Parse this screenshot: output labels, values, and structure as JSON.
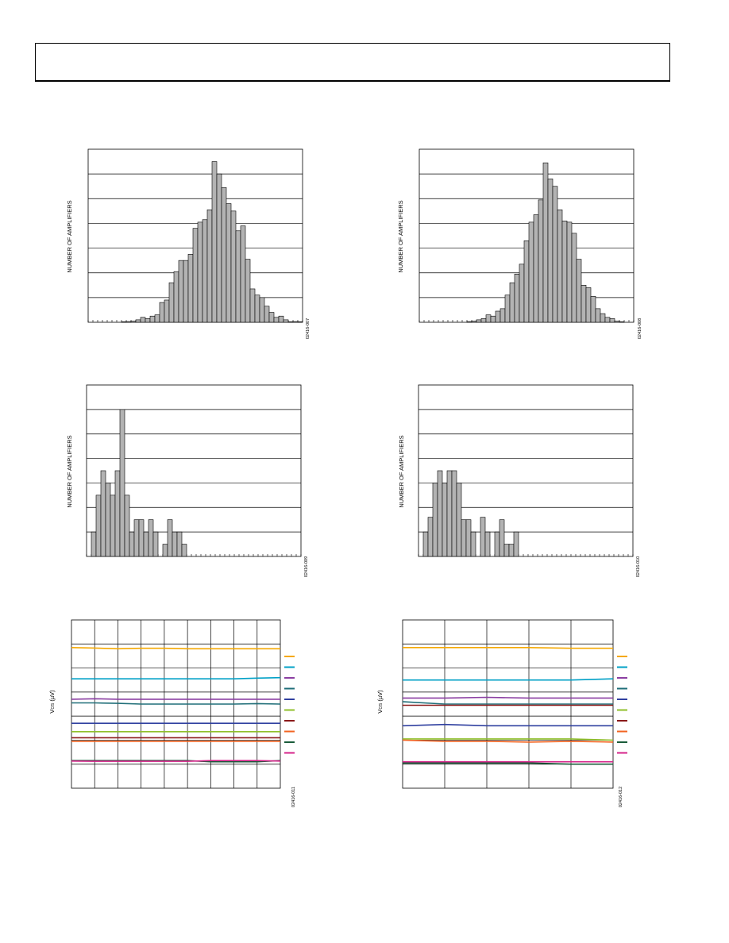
{
  "colors": {
    "bar_fill": "#b3b3b3",
    "grid": "#000000",
    "series": [
      "#f5a800",
      "#00a0c6",
      "#8b3fa2",
      "#1f6e78",
      "#3040a0",
      "#8fbf2a",
      "#8b1a1a",
      "#f26522",
      "#1a5c3a",
      "#d6238a"
    ]
  },
  "charts": [
    {
      "ylabel": "NUMBER OF AMPLIFIERS",
      "figure_code": "02416-007"
    },
    {
      "ylabel": "NUMBER OF AMPLIFIERS",
      "figure_code": "02416-008"
    },
    {
      "ylabel": "NUMBER OF AMPLIFIERS",
      "figure_code": "02416-009"
    },
    {
      "ylabel": "NUMBER OF AMPLIFIERS",
      "figure_code": "02416-010"
    },
    {
      "ylabel_main": "V",
      "ylabel_sub": "OS",
      "ylabel_unit": " (µV)",
      "figure_code": "02416-011"
    },
    {
      "ylabel_main": "V",
      "ylabel_sub": "OS",
      "ylabel_unit": " (µV)",
      "figure_code": "02416-012"
    }
  ],
  "chart_data": [
    {
      "type": "bar",
      "ylim": [
        0,
        7
      ],
      "grid": true,
      "xticks": 45,
      "values": [
        0,
        0,
        0,
        0,
        0,
        0,
        0,
        0.02,
        0.03,
        0.05,
        0.1,
        0.2,
        0.15,
        0.25,
        0.3,
        0.8,
        0.9,
        1.6,
        2.05,
        2.5,
        2.5,
        2.75,
        3.8,
        4.05,
        4.15,
        4.55,
        6.5,
        6,
        5.45,
        4.8,
        4.5,
        3.7,
        3.9,
        2.55,
        1.35,
        1.1,
        1,
        0.65,
        0.4,
        0.2,
        0.25,
        0.1,
        0.02,
        0.03,
        0.02
      ]
    },
    {
      "type": "bar",
      "ylim": [
        0,
        7
      ],
      "grid": true,
      "xticks": 45,
      "values": [
        0,
        0,
        0,
        0,
        0,
        0,
        0,
        0,
        0,
        0,
        0.03,
        0.05,
        0.1,
        0.15,
        0.3,
        0.25,
        0.45,
        0.55,
        1.1,
        1.6,
        1.95,
        2.35,
        3.3,
        4.05,
        4.35,
        4.95,
        6.45,
        5.8,
        5.5,
        4.55,
        4.1,
        4.05,
        3.6,
        2.55,
        1.5,
        1.4,
        1.05,
        0.55,
        0.35,
        0.2,
        0.15,
        0.05,
        0.02,
        0,
        0
      ]
    },
    {
      "type": "bar",
      "ylim": [
        0,
        7
      ],
      "grid": true,
      "xticks": 45,
      "values": [
        0,
        1,
        2.5,
        3.5,
        3,
        2.5,
        3.5,
        6,
        2.5,
        1,
        1.5,
        1.5,
        1,
        1.5,
        1,
        0,
        0.5,
        1.5,
        1,
        1,
        0.5,
        0,
        0,
        0,
        0,
        0,
        0,
        0,
        0,
        0,
        0,
        0,
        0,
        0,
        0,
        0,
        0,
        0,
        0,
        0,
        0,
        0,
        0,
        0,
        0
      ]
    },
    {
      "type": "bar",
      "ylim": [
        0,
        7
      ],
      "grid": true,
      "xticks": 45,
      "values": [
        0,
        1,
        1.6,
        3,
        3.5,
        3,
        3.5,
        3.5,
        3,
        1.5,
        1.5,
        1,
        0,
        1.6,
        1,
        0,
        1,
        1.5,
        0.5,
        0.5,
        1,
        0,
        0,
        0,
        0,
        0,
        0,
        0,
        0,
        0,
        0,
        0,
        0,
        0,
        0,
        0,
        0,
        0,
        0,
        0,
        0,
        0,
        0,
        0,
        0
      ]
    },
    {
      "type": "line",
      "xlim": [
        0,
        9
      ],
      "ylim": [
        0,
        7
      ],
      "grid": true,
      "legend_position": "right",
      "series": [
        {
          "values": [
            5.85,
            5.83,
            5.8,
            5.82,
            5.82,
            5.8,
            5.8,
            5.8,
            5.8,
            5.8
          ]
        },
        {
          "values": [
            4.55,
            4.55,
            4.55,
            4.55,
            4.55,
            4.55,
            4.55,
            4.55,
            4.58,
            4.6
          ]
        },
        {
          "values": [
            3.7,
            3.72,
            3.7,
            3.7,
            3.7,
            3.7,
            3.7,
            3.7,
            3.7,
            3.7
          ]
        },
        {
          "values": [
            3.55,
            3.55,
            3.53,
            3.5,
            3.5,
            3.5,
            3.5,
            3.5,
            3.52,
            3.5
          ]
        },
        {
          "values": [
            2.7,
            2.7,
            2.7,
            2.7,
            2.7,
            2.7,
            2.7,
            2.7,
            2.7,
            2.7
          ]
        },
        {
          "values": [
            2.35,
            2.35,
            2.35,
            2.35,
            2.35,
            2.35,
            2.35,
            2.35,
            2.35,
            2.35
          ]
        },
        {
          "values": [
            2.1,
            2.1,
            2.1,
            2.1,
            2.1,
            2.1,
            2.1,
            2.1,
            2.1,
            2.1
          ]
        },
        {
          "values": [
            1.95,
            1.95,
            1.95,
            1.95,
            1.95,
            1.95,
            1.95,
            1.95,
            1.95,
            1.95
          ]
        },
        {
          "values": [
            1.15,
            1.15,
            1.15,
            1.15,
            1.15,
            1.15,
            1.1,
            1.1,
            1.1,
            1.15
          ]
        },
        {
          "values": [
            1.13,
            1.12,
            1.12,
            1.12,
            1.12,
            1.12,
            1.15,
            1.15,
            1.15,
            1.13
          ]
        }
      ]
    },
    {
      "type": "line",
      "xlim": [
        0,
        5
      ],
      "ylim": [
        0,
        7
      ],
      "grid": true,
      "legend_position": "right",
      "series": [
        {
          "values": [
            5.85,
            5.85,
            5.85,
            5.85,
            5.82,
            5.82
          ]
        },
        {
          "values": [
            4.5,
            4.5,
            4.5,
            4.5,
            4.5,
            4.55
          ]
        },
        {
          "values": [
            3.75,
            3.75,
            3.78,
            3.75,
            3.75,
            3.75
          ]
        },
        {
          "values": [
            3.6,
            3.5,
            3.5,
            3.5,
            3.5,
            3.5
          ]
        },
        {
          "values": [
            2.6,
            2.65,
            2.6,
            2.6,
            2.6,
            2.6
          ]
        },
        {
          "values": [
            2.05,
            2.05,
            2.05,
            2.05,
            2.05,
            2.0
          ]
        },
        {
          "values": [
            3.45,
            3.45,
            3.45,
            3.45,
            3.45,
            3.45
          ]
        },
        {
          "values": [
            2.0,
            1.95,
            1.95,
            1.92,
            1.95,
            1.92
          ]
        },
        {
          "values": [
            1.05,
            1.05,
            1.05,
            1.05,
            1.0,
            1.0
          ]
        },
        {
          "values": [
            1.1,
            1.1,
            1.1,
            1.1,
            1.1,
            1.1
          ]
        }
      ]
    }
  ]
}
